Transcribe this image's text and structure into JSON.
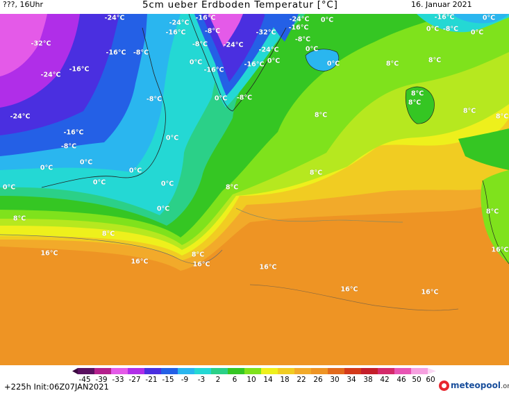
{
  "header": {
    "left": "???, 16Uhr",
    "title": "5cm ueber Erdboden Temperatur [°C]",
    "date": "16. Januar 2021"
  },
  "map_labels": {
    "ne24a": "-24°C",
    "n24b": "-24°C",
    "n16a": "-16°C",
    "n16b": "-16°C",
    "n8a": "-8°C",
    "n16c": "-16°C",
    "n24c": "-24°C",
    "n32a": "-32°C",
    "n24d": "-24°C",
    "n16d": "-16°C",
    "n8b": "-8°C",
    "z1": "0°C",
    "n32b": "-32°C",
    "n24e": "-24°C",
    "n16e": "-16°C",
    "n8c": "-8°C",
    "n24f": "-24°C",
    "n16f": "-16°C",
    "z2": "0°C",
    "n16g": "-16°C",
    "z3": "0°C",
    "n16h": "-16°C",
    "n8d": "-8°C",
    "z4": "0°C",
    "z5": "0°C",
    "n8e": "-8°C",
    "z6": "0°C",
    "z7": "0°C",
    "n16i": "-16°C",
    "n32c": "-32°C",
    "n24g": "-24°C",
    "n16j": "-16°C",
    "n8f": "-8°C",
    "n8g": "-8°C",
    "z8": "0°C",
    "n8h": "-8°C",
    "z9": "0°C",
    "p8a": "8°C",
    "p8b": "8°C",
    "n24h": "-24°C",
    "n16k": "-16°C",
    "n8i": "-8°C",
    "z10": "0°C",
    "p8c": "8°C",
    "p8d": "8°C",
    "p8e": "8°C",
    "n8j": "-8°C",
    "z11": "0°C",
    "z12": "0°C",
    "z13": "0°C",
    "p8f": "8°C",
    "p8g": "8°C",
    "z14": "0°C",
    "z15": "0°C",
    "z16": "0°C",
    "p8h": "8°C",
    "p8i": "8°C",
    "p8j": "8°C",
    "p16a": "16°C",
    "p16b": "16°C",
    "p8k": "8°C",
    "p16c": "16°C",
    "p16d": "16°C",
    "p16e": "16°C",
    "p16f": "16°C",
    "p16g": "16°C",
    "z17": "0°C",
    "n16l": "-16°C",
    "n8k": "-8°C",
    "p8l": "8°C",
    "p8m": "8°C"
  },
  "colorbar": {
    "ticks": [
      "-45",
      "-39",
      "-33",
      "-27",
      "-21",
      "-15",
      "-9",
      "-3",
      "2",
      "6",
      "10",
      "14",
      "18",
      "22",
      "26",
      "30",
      "34",
      "38",
      "42",
      "46",
      "50",
      "60"
    ]
  },
  "footer": {
    "init": "+225h  Init:06Z07JAN2021",
    "brand_name": "meteopool",
    "brand_domain": ".org"
  }
}
